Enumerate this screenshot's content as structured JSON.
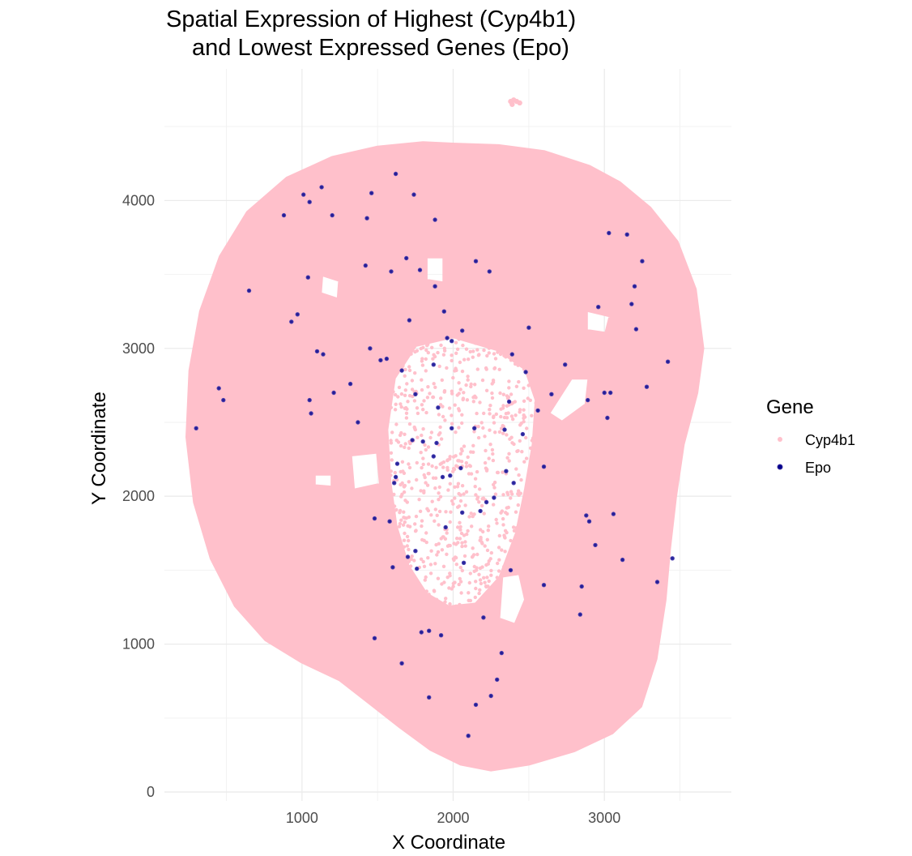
{
  "chart_data": {
    "type": "scatter",
    "title_lines": [
      "Spatial Expression of Highest (Cyp4b1)",
      "and Lowest Expressed Genes (Epo)"
    ],
    "xlabel": "X Coordinate",
    "ylabel": "Y Coordinate",
    "xlim": [
      90,
      3840
    ],
    "ylim": [
      -60,
      4890
    ],
    "x_ticks": [
      1000,
      2000,
      3000
    ],
    "y_ticks": [
      0,
      1000,
      2000,
      3000,
      4000
    ],
    "grid": true,
    "legend": {
      "title": "Gene",
      "position": "right",
      "entries": [
        {
          "label": "Cyp4b1",
          "color": "#ffc0cb"
        },
        {
          "label": "Epo",
          "color": "#00008b"
        }
      ]
    },
    "series": [
      {
        "name": "Cyp4b1",
        "color": "#ffc0cb",
        "description_points": "dense tissue section covering the whole region",
        "outline": [
          [
            2000,
            4380
          ],
          [
            2300,
            4370
          ],
          [
            2600,
            4330
          ],
          [
            2900,
            4230
          ],
          [
            3100,
            4120
          ],
          [
            3300,
            3950
          ],
          [
            3480,
            3720
          ],
          [
            3600,
            3400
          ],
          [
            3650,
            3000
          ],
          [
            3610,
            2700
          ],
          [
            3520,
            2350
          ],
          [
            3470,
            2000
          ],
          [
            3430,
            1650
          ],
          [
            3400,
            1300
          ],
          [
            3340,
            900
          ],
          [
            3240,
            580
          ],
          [
            3050,
            400
          ],
          [
            2800,
            280
          ],
          [
            2500,
            190
          ],
          [
            2250,
            150
          ],
          [
            2050,
            190
          ],
          [
            1850,
            290
          ],
          [
            1650,
            440
          ],
          [
            1450,
            600
          ],
          [
            1250,
            760
          ],
          [
            1000,
            880
          ],
          [
            760,
            1030
          ],
          [
            560,
            1260
          ],
          [
            400,
            1580
          ],
          [
            290,
            1960
          ],
          [
            240,
            2400
          ],
          [
            260,
            2850
          ],
          [
            330,
            3250
          ],
          [
            460,
            3620
          ],
          [
            640,
            3920
          ],
          [
            900,
            4150
          ],
          [
            1200,
            4290
          ],
          [
            1500,
            4360
          ],
          [
            1800,
            4390
          ]
        ],
        "holes": [
          [
            [
              1750,
              3020
            ],
            [
              2000,
              3080
            ],
            [
              2300,
              2990
            ],
            [
              2480,
              2860
            ],
            [
              2550,
              2650
            ],
            [
              2530,
              2350
            ],
            [
              2480,
              2050
            ],
            [
              2420,
              1750
            ],
            [
              2310,
              1450
            ],
            [
              2150,
              1270
            ],
            [
              1970,
              1250
            ],
            [
              1820,
              1340
            ],
            [
              1700,
              1530
            ],
            [
              1620,
              1800
            ],
            [
              1580,
              2100
            ],
            [
              1560,
              2450
            ],
            [
              1610,
              2800
            ]
          ],
          [
            [
              2320,
              1460
            ],
            [
              2440,
              1480
            ],
            [
              2480,
              1300
            ],
            [
              2410,
              1130
            ],
            [
              2300,
              1170
            ]
          ],
          [
            [
              1320,
              2280
            ],
            [
              1500,
              2300
            ],
            [
              1520,
              2080
            ],
            [
              1340,
              2040
            ]
          ],
          [
            [
              2630,
              2560
            ],
            [
              2780,
              2800
            ],
            [
              2900,
              2800
            ],
            [
              2880,
              2620
            ],
            [
              2720,
              2500
            ]
          ],
          [
            [
              1820,
              3620
            ],
            [
              1940,
              3620
            ],
            [
              1940,
              3440
            ],
            [
              1820,
              3460
            ]
          ],
          [
            [
              1130,
              3500
            ],
            [
              1250,
              3460
            ],
            [
              1240,
              3330
            ],
            [
              1120,
              3370
            ]
          ],
          [
            [
              2880,
              3260
            ],
            [
              3040,
              3220
            ],
            [
              3010,
              3100
            ],
            [
              2880,
              3120
            ]
          ],
          [
            [
              1080,
              2150
            ],
            [
              1200,
              2150
            ],
            [
              1200,
              2060
            ],
            [
              1080,
              2070
            ]
          ]
        ],
        "extra_points": [
          [
            2380,
            4670
          ],
          [
            2400,
            4680
          ],
          [
            2420,
            4670
          ],
          [
            2440,
            4660
          ],
          [
            2390,
            4650
          ]
        ]
      },
      {
        "name": "Epo",
        "color": "#00008b",
        "x": [
          1620,
          1010,
          1130,
          1460,
          1740,
          1050,
          1200,
          880,
          1430,
          1880,
          3030,
          3150,
          3250,
          1690,
          2150,
          1420,
          1780,
          2240,
          1590,
          1040,
          1880,
          3200,
          3180,
          2960,
          1940,
          650,
          2060,
          3210,
          930,
          970,
          2500,
          2740,
          1870,
          3420,
          1450,
          1710,
          1660,
          1990,
          2390,
          1960,
          1520,
          1100,
          1140,
          3040,
          1560,
          2480,
          1060,
          1320,
          1210,
          3000,
          1750,
          2650,
          480,
          300,
          450,
          2890,
          3280,
          2370,
          1050,
          1900,
          2560,
          1370,
          2140,
          1990,
          2340,
          2460,
          1730,
          1800,
          1890,
          1630,
          2050,
          2600,
          2350,
          1980,
          2400,
          1610,
          2270,
          2220,
          1620,
          1480,
          2880,
          2900,
          1950,
          3120,
          3450,
          2600,
          2850,
          3060,
          3350,
          2940,
          2070,
          2380,
          1700,
          2180,
          1580,
          2840,
          1790,
          1920,
          1750,
          1480,
          1760,
          1600,
          2200,
          1840,
          2290,
          2250,
          1840,
          2100,
          2150,
          3020,
          2320,
          1660,
          2060,
          1870,
          1930
        ],
        "y": [
          4180,
          4040,
          4090,
          4050,
          4040,
          3990,
          3900,
          3900,
          3880,
          3870,
          3780,
          3770,
          3590,
          3610,
          3590,
          3560,
          3530,
          3520,
          3520,
          3480,
          3420,
          3420,
          3300,
          3280,
          3250,
          3390,
          3120,
          3130,
          3180,
          3230,
          3140,
          2890,
          2890,
          2910,
          3000,
          3190,
          2850,
          3050,
          2960,
          3070,
          2920,
          2980,
          2960,
          2700,
          2930,
          2840,
          2560,
          2760,
          2700,
          2700,
          2690,
          2690,
          2650,
          2460,
          2730,
          2650,
          2740,
          2640,
          2650,
          2600,
          2580,
          2500,
          2460,
          2460,
          2450,
          2420,
          2380,
          2370,
          2360,
          2220,
          2190,
          2200,
          2170,
          2140,
          2090,
          2090,
          1990,
          1960,
          2130,
          1850,
          1870,
          1830,
          1790,
          1570,
          1580,
          1400,
          1390,
          1880,
          1420,
          1670,
          1550,
          1500,
          1590,
          1900,
          1830,
          1200,
          1080,
          1060,
          1630,
          1040,
          1510,
          1520,
          1180,
          1090,
          760,
          650,
          640,
          380,
          590,
          2530,
          940,
          870,
          1890,
          2270,
          2130
        ]
      }
    ]
  }
}
